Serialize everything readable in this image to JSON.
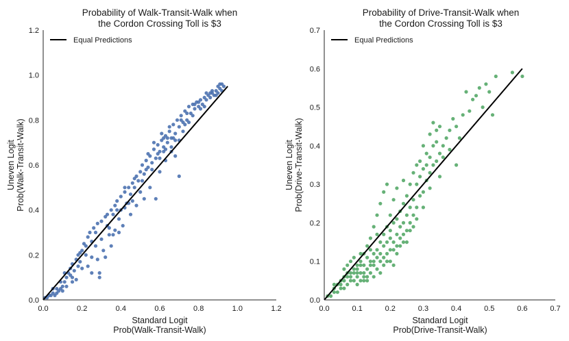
{
  "chart_data": [
    {
      "type": "scatter",
      "title_lines": [
        "Probability of Walk-Transit-Walk when",
        "the Cordon Crossing Toll is $3"
      ],
      "xlabel_lines": [
        "Standard Logit",
        "Prob(Walk-Transit-Walk)"
      ],
      "ylabel_lines": [
        "Uneven Logit",
        "Prob(Walk-Transit-Walk)"
      ],
      "xlim": [
        0,
        1.2
      ],
      "ylim": [
        0,
        1.2
      ],
      "xticks": [
        "0.0",
        "0.2",
        "0.4",
        "0.6",
        "0.8",
        "1.0",
        "1.2"
      ],
      "yticks": [
        "0.0",
        "0.2",
        "0.4",
        "0.6",
        "0.8",
        "1.0",
        "1.2"
      ],
      "tick_values": [
        0,
        0.2,
        0.4,
        0.6,
        0.8,
        1.0,
        1.2
      ],
      "legend": {
        "label": "Equal Predictions",
        "location": "upper-left"
      },
      "line": {
        "name": "Equal Predictions",
        "x": [
          0,
          0.95
        ],
        "y": [
          0,
          0.95
        ],
        "color": "#000000"
      },
      "scatter_color": "#4c72b0",
      "points": [
        [
          0.01,
          0.01
        ],
        [
          0.02,
          0.01
        ],
        [
          0.03,
          0.02
        ],
        [
          0.04,
          0.02
        ],
        [
          0.05,
          0.03
        ],
        [
          0.06,
          0.02
        ],
        [
          0.07,
          0.03
        ],
        [
          0.08,
          0.04
        ],
        [
          0.09,
          0.05
        ],
        [
          0.1,
          0.04
        ],
        [
          0.1,
          0.06
        ],
        [
          0.11,
          0.08
        ],
        [
          0.12,
          0.1
        ],
        [
          0.12,
          0.06
        ],
        [
          0.13,
          0.12
        ],
        [
          0.14,
          0.14
        ],
        [
          0.15,
          0.16
        ],
        [
          0.15,
          0.1
        ],
        [
          0.16,
          0.13
        ],
        [
          0.17,
          0.18
        ],
        [
          0.17,
          0.09
        ],
        [
          0.18,
          0.2
        ],
        [
          0.19,
          0.17
        ],
        [
          0.2,
          0.22
        ],
        [
          0.2,
          0.14
        ],
        [
          0.21,
          0.25
        ],
        [
          0.22,
          0.2
        ],
        [
          0.23,
          0.28
        ],
        [
          0.23,
          0.15
        ],
        [
          0.24,
          0.3
        ],
        [
          0.25,
          0.26
        ],
        [
          0.25,
          0.12
        ],
        [
          0.26,
          0.32
        ],
        [
          0.27,
          0.24
        ],
        [
          0.28,
          0.34
        ],
        [
          0.28,
          0.18
        ],
        [
          0.29,
          0.1
        ],
        [
          0.3,
          0.35
        ],
        [
          0.3,
          0.27
        ],
        [
          0.31,
          0.22
        ],
        [
          0.32,
          0.37
        ],
        [
          0.33,
          0.33
        ],
        [
          0.34,
          0.29
        ],
        [
          0.35,
          0.4
        ],
        [
          0.35,
          0.24
        ],
        [
          0.36,
          0.38
        ],
        [
          0.37,
          0.42
        ],
        [
          0.37,
          0.31
        ],
        [
          0.38,
          0.44
        ],
        [
          0.39,
          0.36
        ],
        [
          0.4,
          0.46
        ],
        [
          0.4,
          0.4
        ],
        [
          0.41,
          0.33
        ],
        [
          0.42,
          0.48
        ],
        [
          0.43,
          0.43
        ],
        [
          0.44,
          0.5
        ],
        [
          0.45,
          0.47
        ],
        [
          0.45,
          0.38
        ],
        [
          0.46,
          0.52
        ],
        [
          0.47,
          0.5
        ],
        [
          0.48,
          0.55
        ],
        [
          0.49,
          0.53
        ],
        [
          0.5,
          0.57
        ],
        [
          0.5,
          0.48
        ],
        [
          0.51,
          0.6
        ],
        [
          0.52,
          0.56
        ],
        [
          0.53,
          0.62
        ],
        [
          0.54,
          0.59
        ],
        [
          0.55,
          0.64
        ],
        [
          0.56,
          0.61
        ],
        [
          0.57,
          0.67
        ],
        [
          0.58,
          0.63
        ],
        [
          0.59,
          0.69
        ],
        [
          0.6,
          0.66
        ],
        [
          0.61,
          0.71
        ],
        [
          0.62,
          0.68
        ],
        [
          0.63,
          0.73
        ],
        [
          0.64,
          0.7
        ],
        [
          0.65,
          0.75
        ],
        [
          0.66,
          0.72
        ],
        [
          0.67,
          0.78
        ],
        [
          0.68,
          0.74
        ],
        [
          0.69,
          0.8
        ],
        [
          0.7,
          0.77
        ],
        [
          0.71,
          0.82
        ],
        [
          0.72,
          0.79
        ],
        [
          0.73,
          0.84
        ],
        [
          0.74,
          0.8
        ],
        [
          0.75,
          0.86
        ],
        [
          0.76,
          0.83
        ],
        [
          0.77,
          0.87
        ],
        [
          0.78,
          0.85
        ],
        [
          0.79,
          0.88
        ],
        [
          0.8,
          0.86
        ],
        [
          0.81,
          0.89
        ],
        [
          0.82,
          0.87
        ],
        [
          0.83,
          0.9
        ],
        [
          0.84,
          0.89
        ],
        [
          0.85,
          0.91
        ],
        [
          0.86,
          0.9
        ],
        [
          0.87,
          0.92
        ],
        [
          0.88,
          0.91
        ],
        [
          0.89,
          0.93
        ],
        [
          0.9,
          0.92
        ],
        [
          0.91,
          0.94
        ],
        [
          0.92,
          0.93
        ],
        [
          0.93,
          0.95
        ],
        [
          0.42,
          0.5
        ],
        [
          0.48,
          0.42
        ],
        [
          0.52,
          0.45
        ],
        [
          0.55,
          0.5
        ],
        [
          0.58,
          0.45
        ],
        [
          0.6,
          0.57
        ],
        [
          0.63,
          0.62
        ],
        [
          0.66,
          0.68
        ],
        [
          0.7,
          0.55
        ],
        [
          0.72,
          0.75
        ],
        [
          0.57,
          0.7
        ],
        [
          0.61,
          0.74
        ],
        [
          0.65,
          0.77
        ],
        [
          0.68,
          0.71
        ],
        [
          0.59,
          0.65
        ],
        [
          0.53,
          0.58
        ],
        [
          0.46,
          0.44
        ],
        [
          0.38,
          0.4
        ],
        [
          0.33,
          0.38
        ],
        [
          0.27,
          0.3
        ],
        [
          0.22,
          0.24
        ],
        [
          0.18,
          0.15
        ],
        [
          0.14,
          0.11
        ],
        [
          0.11,
          0.12
        ],
        [
          0.07,
          0.05
        ],
        [
          0.29,
          0.12
        ],
        [
          0.32,
          0.19
        ],
        [
          0.36,
          0.29
        ],
        [
          0.39,
          0.3
        ],
        [
          0.42,
          0.41
        ],
        [
          0.47,
          0.54
        ],
        [
          0.51,
          0.53
        ],
        [
          0.54,
          0.65
        ],
        [
          0.62,
          0.72
        ],
        [
          0.67,
          0.72
        ],
        [
          0.71,
          0.8
        ],
        [
          0.74,
          0.83
        ],
        [
          0.77,
          0.82
        ],
        [
          0.8,
          0.88
        ],
        [
          0.83,
          0.86
        ],
        [
          0.86,
          0.92
        ],
        [
          0.89,
          0.91
        ],
        [
          0.91,
          0.96
        ],
        [
          0.68,
          0.64
        ],
        [
          0.73,
          0.78
        ],
        [
          0.63,
          0.67
        ],
        [
          0.56,
          0.58
        ],
        [
          0.44,
          0.43
        ],
        [
          0.34,
          0.32
        ],
        [
          0.25,
          0.19
        ],
        [
          0.19,
          0.21
        ],
        [
          0.15,
          0.08
        ],
        [
          0.09,
          0.08
        ],
        [
          0.05,
          0.05
        ],
        [
          0.6,
          0.63
        ],
        [
          0.62,
          0.66
        ],
        [
          0.64,
          0.72
        ],
        [
          0.66,
          0.66
        ],
        [
          0.7,
          0.71
        ],
        [
          0.75,
          0.79
        ],
        [
          0.78,
          0.87
        ],
        [
          0.81,
          0.85
        ],
        [
          0.84,
          0.92
        ],
        [
          0.87,
          0.93
        ],
        [
          0.9,
          0.95
        ],
        [
          0.92,
          0.96
        ]
      ]
    },
    {
      "type": "scatter",
      "title_lines": [
        "Probability of Drive-Transit-Walk when",
        "the Cordon Crossing Toll is $3"
      ],
      "xlabel_lines": [
        "Standard Logit",
        "Prob(Drive-Transit-Walk)"
      ],
      "ylabel_lines": [
        "Uneven Logit",
        "Prob(Drive-Transit-Walk)"
      ],
      "xlim": [
        0,
        0.7
      ],
      "ylim": [
        0,
        0.7
      ],
      "xticks": [
        "0.0",
        "0.1",
        "0.2",
        "0.3",
        "0.4",
        "0.5",
        "0.6",
        "0.7"
      ],
      "yticks": [
        "0.0",
        "0.1",
        "0.2",
        "0.3",
        "0.4",
        "0.5",
        "0.6",
        "0.7"
      ],
      "tick_values": [
        0,
        0.1,
        0.2,
        0.3,
        0.4,
        0.5,
        0.6,
        0.7
      ],
      "legend": {
        "label": "Equal Predictions",
        "location": "upper-left"
      },
      "line": {
        "name": "Equal Predictions",
        "x": [
          0,
          0.6
        ],
        "y": [
          0,
          0.6
        ],
        "color": "#000000"
      },
      "scatter_color": "#55a868",
      "points": [
        [
          0.01,
          0.01
        ],
        [
          0.02,
          0.01
        ],
        [
          0.03,
          0.02
        ],
        [
          0.03,
          0.03
        ],
        [
          0.04,
          0.02
        ],
        [
          0.05,
          0.03
        ],
        [
          0.05,
          0.04
        ],
        [
          0.06,
          0.03
        ],
        [
          0.06,
          0.05
        ],
        [
          0.07,
          0.04
        ],
        [
          0.07,
          0.06
        ],
        [
          0.08,
          0.05
        ],
        [
          0.08,
          0.07
        ],
        [
          0.09,
          0.05
        ],
        [
          0.09,
          0.08
        ],
        [
          0.1,
          0.06
        ],
        [
          0.1,
          0.09
        ],
        [
          0.1,
          0.04
        ],
        [
          0.11,
          0.07
        ],
        [
          0.11,
          0.1
        ],
        [
          0.12,
          0.06
        ],
        [
          0.12,
          0.09
        ],
        [
          0.12,
          0.12
        ],
        [
          0.13,
          0.08
        ],
        [
          0.13,
          0.11
        ],
        [
          0.13,
          0.14
        ],
        [
          0.14,
          0.07
        ],
        [
          0.14,
          0.1
        ],
        [
          0.14,
          0.16
        ],
        [
          0.15,
          0.09
        ],
        [
          0.15,
          0.12
        ],
        [
          0.15,
          0.19
        ],
        [
          0.16,
          0.08
        ],
        [
          0.16,
          0.13
        ],
        [
          0.16,
          0.22
        ],
        [
          0.17,
          0.1
        ],
        [
          0.17,
          0.15
        ],
        [
          0.17,
          0.25
        ],
        [
          0.18,
          0.11
        ],
        [
          0.18,
          0.17
        ],
        [
          0.18,
          0.28
        ],
        [
          0.19,
          0.12
        ],
        [
          0.19,
          0.19
        ],
        [
          0.19,
          0.3
        ],
        [
          0.2,
          0.1
        ],
        [
          0.2,
          0.16
        ],
        [
          0.2,
          0.22
        ],
        [
          0.21,
          0.13
        ],
        [
          0.21,
          0.2
        ],
        [
          0.21,
          0.26
        ],
        [
          0.22,
          0.14
        ],
        [
          0.22,
          0.21
        ],
        [
          0.22,
          0.29
        ],
        [
          0.23,
          0.16
        ],
        [
          0.23,
          0.23
        ],
        [
          0.24,
          0.15
        ],
        [
          0.24,
          0.25
        ],
        [
          0.24,
          0.31
        ],
        [
          0.25,
          0.18
        ],
        [
          0.25,
          0.27
        ],
        [
          0.26,
          0.2
        ],
        [
          0.26,
          0.3
        ],
        [
          0.27,
          0.22
        ],
        [
          0.27,
          0.33
        ],
        [
          0.28,
          0.24
        ],
        [
          0.28,
          0.35
        ],
        [
          0.29,
          0.27
        ],
        [
          0.29,
          0.36
        ],
        [
          0.3,
          0.28
        ],
        [
          0.3,
          0.4
        ],
        [
          0.31,
          0.31
        ],
        [
          0.31,
          0.38
        ],
        [
          0.32,
          0.33
        ],
        [
          0.32,
          0.43
        ],
        [
          0.33,
          0.35
        ],
        [
          0.33,
          0.46
        ],
        [
          0.34,
          0.36
        ],
        [
          0.34,
          0.41
        ],
        [
          0.35,
          0.38
        ],
        [
          0.35,
          0.45
        ],
        [
          0.36,
          0.4
        ],
        [
          0.37,
          0.42
        ],
        [
          0.38,
          0.44
        ],
        [
          0.39,
          0.47
        ],
        [
          0.4,
          0.45
        ],
        [
          0.4,
          0.35
        ],
        [
          0.42,
          0.48
        ],
        [
          0.43,
          0.54
        ],
        [
          0.45,
          0.52
        ],
        [
          0.47,
          0.55
        ],
        [
          0.49,
          0.56
        ],
        [
          0.5,
          0.54
        ],
        [
          0.51,
          0.48
        ],
        [
          0.52,
          0.58
        ],
        [
          0.57,
          0.59
        ],
        [
          0.6,
          0.58
        ],
        [
          0.06,
          0.08
        ],
        [
          0.07,
          0.09
        ],
        [
          0.08,
          0.1
        ],
        [
          0.09,
          0.11
        ],
        [
          0.11,
          0.12
        ],
        [
          0.12,
          0.05
        ],
        [
          0.13,
          0.05
        ],
        [
          0.14,
          0.13
        ],
        [
          0.15,
          0.06
        ],
        [
          0.16,
          0.17
        ],
        [
          0.17,
          0.07
        ],
        [
          0.18,
          0.14
        ],
        [
          0.19,
          0.15
        ],
        [
          0.2,
          0.18
        ],
        [
          0.21,
          0.09
        ],
        [
          0.22,
          0.17
        ],
        [
          0.23,
          0.19
        ],
        [
          0.24,
          0.2
        ],
        [
          0.25,
          0.22
        ],
        [
          0.26,
          0.24
        ],
        [
          0.27,
          0.26
        ],
        [
          0.28,
          0.3
        ],
        [
          0.29,
          0.32
        ],
        [
          0.3,
          0.34
        ],
        [
          0.31,
          0.35
        ],
        [
          0.32,
          0.37
        ],
        [
          0.33,
          0.4
        ],
        [
          0.34,
          0.44
        ],
        [
          0.36,
          0.37
        ],
        [
          0.38,
          0.39
        ],
        [
          0.41,
          0.42
        ],
        [
          0.44,
          0.49
        ],
        [
          0.46,
          0.53
        ],
        [
          0.48,
          0.5
        ],
        [
          0.1,
          0.07
        ],
        [
          0.11,
          0.05
        ],
        [
          0.12,
          0.07
        ],
        [
          0.13,
          0.06
        ],
        [
          0.14,
          0.09
        ],
        [
          0.15,
          0.1
        ],
        [
          0.16,
          0.11
        ],
        [
          0.17,
          0.12
        ],
        [
          0.18,
          0.09
        ],
        [
          0.19,
          0.1
        ],
        [
          0.2,
          0.13
        ],
        [
          0.21,
          0.15
        ],
        [
          0.22,
          0.12
        ],
        [
          0.23,
          0.14
        ],
        [
          0.24,
          0.17
        ],
        [
          0.25,
          0.15
        ],
        [
          0.26,
          0.18
        ],
        [
          0.27,
          0.19
        ],
        [
          0.28,
          0.21
        ],
        [
          0.3,
          0.24
        ],
        [
          0.32,
          0.29
        ],
        [
          0.35,
          0.32
        ],
        [
          0.08,
          0.06
        ],
        [
          0.09,
          0.07
        ],
        [
          0.1,
          0.08
        ],
        [
          0.11,
          0.09
        ],
        [
          0.05,
          0.05
        ],
        [
          0.06,
          0.06
        ],
        [
          0.07,
          0.07
        ],
        [
          0.04,
          0.04
        ],
        [
          0.03,
          0.04
        ]
      ]
    }
  ]
}
